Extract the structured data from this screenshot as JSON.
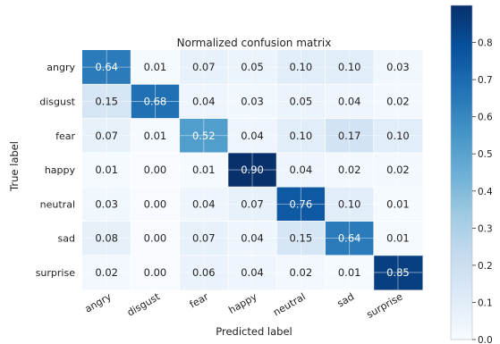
{
  "chart_data": {
    "type": "heatmap",
    "title": "Normalized confusion matrix",
    "xlabel": "Predicted label",
    "ylabel": "True label",
    "x_categories": [
      "angry",
      "disgust",
      "fear",
      "happy",
      "neutral",
      "sad",
      "surprise"
    ],
    "y_categories": [
      "angry",
      "disgust",
      "fear",
      "happy",
      "neutral",
      "sad",
      "surprise"
    ],
    "values": [
      [
        0.64,
        0.01,
        0.07,
        0.05,
        0.1,
        0.1,
        0.03
      ],
      [
        0.15,
        0.68,
        0.04,
        0.03,
        0.05,
        0.04,
        0.02
      ],
      [
        0.07,
        0.01,
        0.52,
        0.04,
        0.1,
        0.17,
        0.1
      ],
      [
        0.01,
        0.0,
        0.01,
        0.9,
        0.04,
        0.02,
        0.02
      ],
      [
        0.03,
        0.0,
        0.04,
        0.07,
        0.76,
        0.1,
        0.01
      ],
      [
        0.08,
        0.0,
        0.07,
        0.04,
        0.15,
        0.64,
        0.01
      ],
      [
        0.02,
        0.0,
        0.06,
        0.04,
        0.02,
        0.01,
        0.85
      ]
    ],
    "colormap": "Blues",
    "colorbar": {
      "range": [
        0.0,
        0.9
      ],
      "ticks": [
        "0.0",
        "0.1",
        "0.2",
        "0.3",
        "0.4",
        "0.5",
        "0.6",
        "0.7",
        "0.8"
      ]
    },
    "grid": true
  }
}
